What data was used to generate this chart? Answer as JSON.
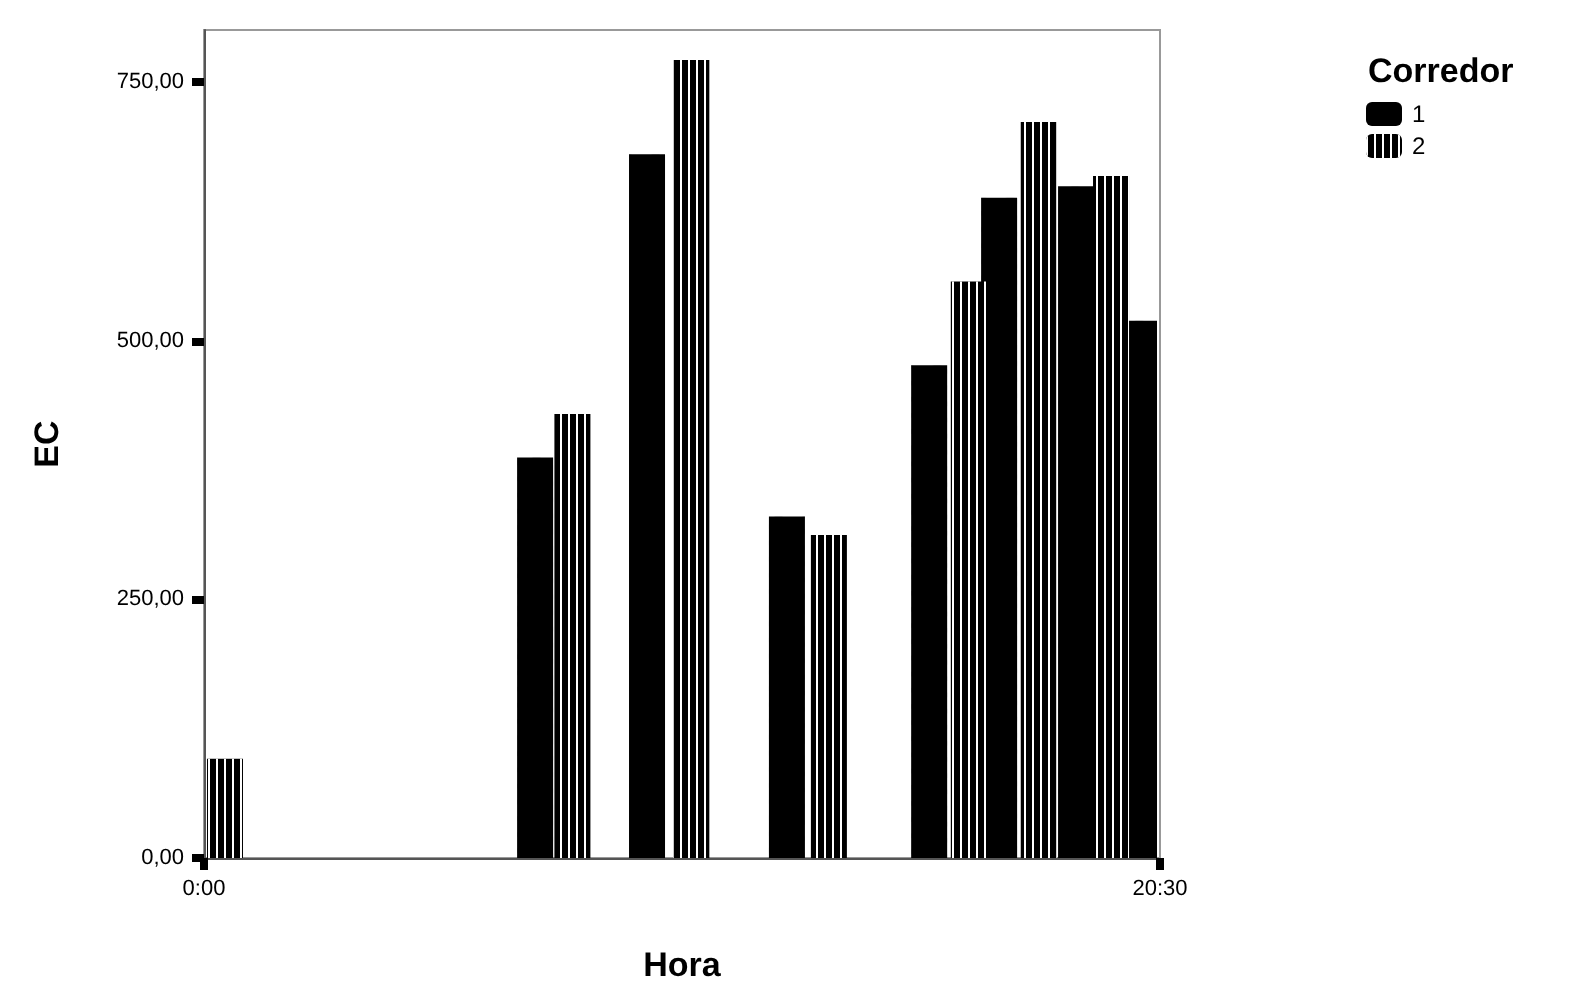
{
  "chart_data": {
    "type": "bar",
    "xlabel": "Hora",
    "ylabel": "EC",
    "legend_title": "Corredor",
    "legend": "top right",
    "grid": false,
    "xlim": [
      0,
      20.5
    ],
    "xticks": [
      {
        "value": 0,
        "label": "0:00"
      },
      {
        "value": 20.5,
        "label": "20:30"
      }
    ],
    "ylim": [
      0,
      800
    ],
    "yticks": [
      {
        "value": 0,
        "label": "0,00"
      },
      {
        "value": 250,
        "label": "250,00"
      },
      {
        "value": 500,
        "label": "500,00"
      },
      {
        "value": 750,
        "label": "750,00"
      }
    ],
    "series": [
      {
        "name": "1",
        "color": "#000000",
        "x": [
          7.1,
          9.5,
          12.5,
          15.55,
          17.05,
          18.7,
          20.05
        ],
        "values": [
          387,
          680,
          330,
          476,
          638,
          649,
          519
        ]
      },
      {
        "name": "2",
        "color": "#000000",
        "x": [
          0.45,
          7.9,
          10.45,
          13.4,
          16.4,
          17.9,
          19.45
        ],
        "values": [
          96,
          429,
          771,
          312,
          557,
          711,
          659
        ]
      }
    ]
  }
}
